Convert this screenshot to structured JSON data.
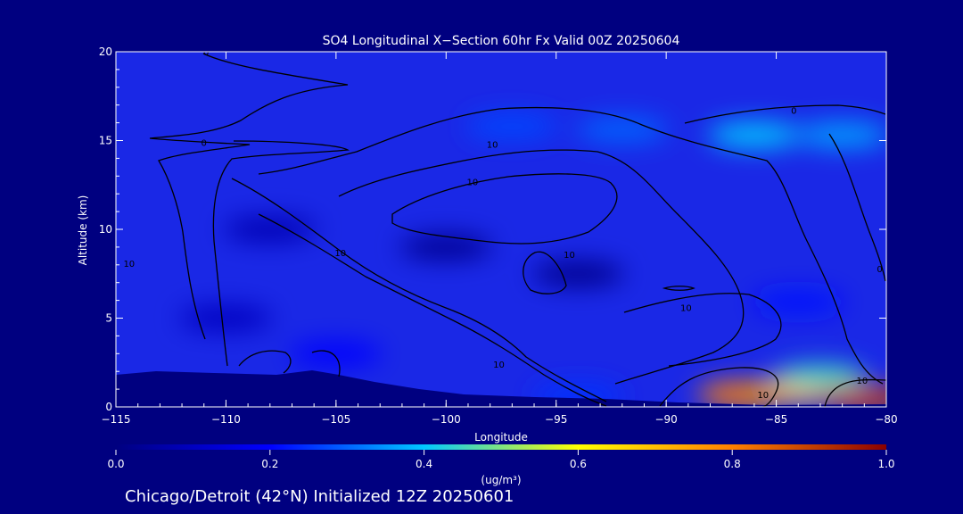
{
  "chart_data": {
    "type": "heatmap",
    "title": "SO4 Longitudinal X−Section 60hr  Fx Valid 00Z 20250604",
    "xlabel": "Longitude",
    "ylabel": "Altitude (km)",
    "xlim": [
      -115,
      -80
    ],
    "ylim": [
      0,
      20
    ],
    "x_ticks": [
      -115,
      -110,
      -105,
      -100,
      -95,
      -90,
      -85,
      -80
    ],
    "x_tick_labels": [
      "−115",
      "−110",
      "−105",
      "−100",
      "−95",
      "−90",
      "−85",
      "−80"
    ],
    "y_ticks": [
      0,
      5,
      10,
      15,
      20
    ],
    "y_tick_labels": [
      "0",
      "5",
      "10",
      "15",
      "20"
    ],
    "grid": false,
    "colorbar": {
      "min": 0.0,
      "max": 1.0,
      "unit_label": "(ug/m³)",
      "tick_values": [
        0.0,
        0.2,
        0.4,
        0.6,
        0.8,
        1.0
      ],
      "tick_labels": [
        "0.0",
        "0.2",
        "0.4",
        "0.6",
        "0.8",
        "1.0"
      ],
      "colormap": [
        "#000080",
        "#0000ff",
        "#00c8ff",
        "#ffff00",
        "#ff8000",
        "#8b0000"
      ]
    },
    "field_features": [
      {
        "lon": -86.5,
        "alt": 0.7,
        "value": 0.8
      },
      {
        "lon": -84.0,
        "alt": 0.9,
        "value": 0.72
      },
      {
        "lon": -81.0,
        "alt": 0.5,
        "value": 0.9
      },
      {
        "lon": -83.0,
        "alt": 1.7,
        "value": 0.45
      },
      {
        "lon": -86.0,
        "alt": 15.3,
        "value": 0.4
      },
      {
        "lon": -82.0,
        "alt": 15.3,
        "value": 0.36
      },
      {
        "lon": -92.0,
        "alt": 15.6,
        "value": 0.3
      },
      {
        "lon": -97.0,
        "alt": 15.8,
        "value": 0.27
      },
      {
        "lon": -84.0,
        "alt": 5.9,
        "value": 0.22
      },
      {
        "lon": -94.0,
        "alt": 0.6,
        "value": 0.25
      },
      {
        "lon": -105.0,
        "alt": 3.0,
        "value": 0.2
      },
      {
        "lon": -100.0,
        "alt": 9.0,
        "value": 0.03
      },
      {
        "lon": -94.0,
        "alt": 7.5,
        "value": 0.02
      },
      {
        "lon": -108.0,
        "alt": 10.0,
        "value": 0.08
      },
      {
        "lon": -110.0,
        "alt": 5.0,
        "value": 0.1
      }
    ],
    "contour_labels": [
      {
        "text": "0",
        "lon": -110.9,
        "alt": 19.8
      },
      {
        "text": "0",
        "lon": -111.0,
        "alt": 14.7
      },
      {
        "text": "0",
        "lon": -84.2,
        "alt": 16.5
      },
      {
        "text": "0",
        "lon": -80.3,
        "alt": 7.6
      },
      {
        "text": "10",
        "lon": -97.9,
        "alt": 14.6
      },
      {
        "text": "10",
        "lon": -98.8,
        "alt": 12.5
      },
      {
        "text": "10",
        "lon": -104.8,
        "alt": 8.5
      },
      {
        "text": "10",
        "lon": -94.4,
        "alt": 8.4
      },
      {
        "text": "10",
        "lon": -89.1,
        "alt": 5.4
      },
      {
        "text": "10",
        "lon": -97.6,
        "alt": 2.2
      },
      {
        "text": "10",
        "lon": -85.6,
        "alt": 0.5
      },
      {
        "text": "10",
        "lon": -81.1,
        "alt": 1.3
      },
      {
        "text": "10",
        "lon": -114.4,
        "alt": 7.9
      }
    ],
    "caption": "Chicago/Detroit (42°N) Initialized 12Z 20250601"
  }
}
